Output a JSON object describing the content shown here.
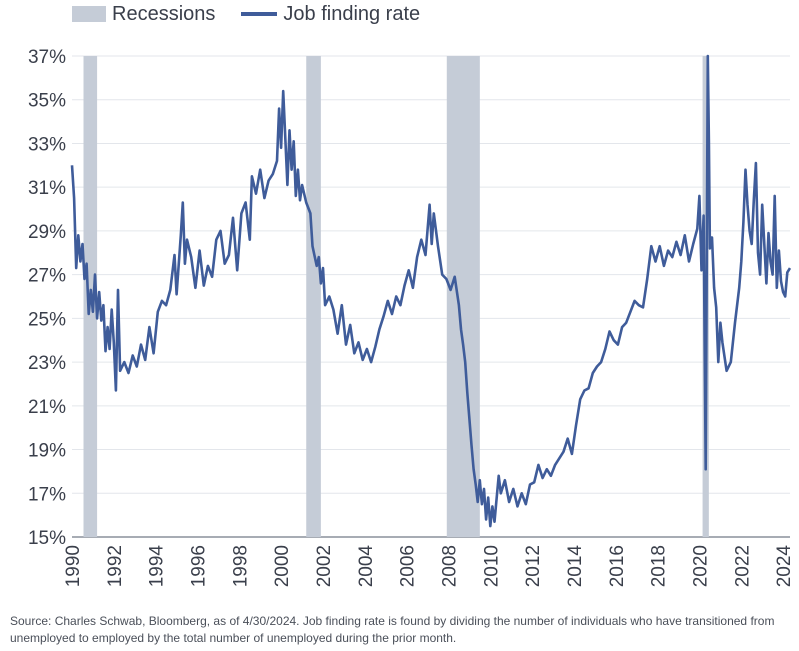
{
  "chart_data": {
    "type": "line",
    "title": "",
    "xlabel": "",
    "ylabel": "",
    "legend": [
      "Recessions",
      "Job finding rate"
    ],
    "legend_position": "top-left",
    "grid": "horizontal",
    "xlim": [
      1990,
      2024.33
    ],
    "ylim": [
      15,
      37
    ],
    "y_ticks": [
      "15%",
      "17%",
      "19%",
      "21%",
      "23%",
      "25%",
      "27%",
      "29%",
      "31%",
      "33%",
      "35%",
      "37%"
    ],
    "x_ticks": [
      "1990",
      "1992",
      "1994",
      "1996",
      "1998",
      "2000",
      "2002",
      "2004",
      "2006",
      "2008",
      "2010",
      "2012",
      "2014",
      "2016",
      "2018",
      "2020",
      "2022",
      "2024"
    ],
    "recessions": [
      [
        1990.55,
        1991.2
      ],
      [
        2001.2,
        2001.9
      ],
      [
        2007.92,
        2009.5
      ],
      [
        2020.15,
        2020.45
      ]
    ],
    "series": [
      {
        "name": "Job finding rate",
        "color": "#3f5c9a",
        "points": [
          [
            1990.0,
            32.0
          ],
          [
            1990.1,
            30.5
          ],
          [
            1990.2,
            27.3
          ],
          [
            1990.3,
            28.8
          ],
          [
            1990.4,
            27.6
          ],
          [
            1990.5,
            28.4
          ],
          [
            1990.6,
            26.8
          ],
          [
            1990.7,
            27.5
          ],
          [
            1990.8,
            25.2
          ],
          [
            1990.9,
            26.3
          ],
          [
            1991.0,
            25.3
          ],
          [
            1991.1,
            27.0
          ],
          [
            1991.2,
            25.0
          ],
          [
            1991.3,
            26.2
          ],
          [
            1991.4,
            24.9
          ],
          [
            1991.5,
            25.6
          ],
          [
            1991.6,
            23.5
          ],
          [
            1991.7,
            24.6
          ],
          [
            1991.8,
            23.6
          ],
          [
            1991.9,
            25.4
          ],
          [
            1992.0,
            23.9
          ],
          [
            1992.1,
            21.7
          ],
          [
            1992.2,
            26.3
          ],
          [
            1992.3,
            22.6
          ],
          [
            1992.5,
            23.0
          ],
          [
            1992.7,
            22.5
          ],
          [
            1992.9,
            23.3
          ],
          [
            1993.1,
            22.8
          ],
          [
            1993.3,
            23.8
          ],
          [
            1993.5,
            23.1
          ],
          [
            1993.7,
            24.6
          ],
          [
            1993.9,
            23.4
          ],
          [
            1994.1,
            25.3
          ],
          [
            1994.3,
            25.8
          ],
          [
            1994.5,
            25.6
          ],
          [
            1994.7,
            26.3
          ],
          [
            1994.9,
            27.9
          ],
          [
            1995.0,
            26.1
          ],
          [
            1995.2,
            28.8
          ],
          [
            1995.3,
            30.3
          ],
          [
            1995.4,
            27.5
          ],
          [
            1995.5,
            28.6
          ],
          [
            1995.7,
            27.8
          ],
          [
            1995.9,
            26.4
          ],
          [
            1996.1,
            28.1
          ],
          [
            1996.3,
            26.5
          ],
          [
            1996.5,
            27.4
          ],
          [
            1996.7,
            26.9
          ],
          [
            1996.9,
            28.6
          ],
          [
            1997.1,
            29.0
          ],
          [
            1997.3,
            27.5
          ],
          [
            1997.5,
            27.9
          ],
          [
            1997.7,
            29.6
          ],
          [
            1997.9,
            27.2
          ],
          [
            1998.1,
            29.8
          ],
          [
            1998.3,
            30.3
          ],
          [
            1998.5,
            28.6
          ],
          [
            1998.6,
            31.5
          ],
          [
            1998.8,
            30.7
          ],
          [
            1999.0,
            31.8
          ],
          [
            1999.2,
            30.5
          ],
          [
            1999.4,
            31.3
          ],
          [
            1999.6,
            31.6
          ],
          [
            1999.8,
            32.2
          ],
          [
            1999.9,
            34.6
          ],
          [
            2000.0,
            32.8
          ],
          [
            2000.1,
            35.4
          ],
          [
            2000.3,
            31.1
          ],
          [
            2000.4,
            33.6
          ],
          [
            2000.5,
            31.8
          ],
          [
            2000.6,
            33.1
          ],
          [
            2000.7,
            30.6
          ],
          [
            2000.8,
            31.8
          ],
          [
            2000.9,
            30.4
          ],
          [
            2001.0,
            31.1
          ],
          [
            2001.2,
            30.3
          ],
          [
            2001.4,
            29.8
          ],
          [
            2001.5,
            28.3
          ],
          [
            2001.7,
            27.4
          ],
          [
            2001.8,
            27.8
          ],
          [
            2001.9,
            26.6
          ],
          [
            2002.0,
            27.3
          ],
          [
            2002.1,
            25.6
          ],
          [
            2002.3,
            26.0
          ],
          [
            2002.5,
            25.4
          ],
          [
            2002.7,
            24.3
          ],
          [
            2002.9,
            25.6
          ],
          [
            2003.1,
            23.8
          ],
          [
            2003.3,
            24.7
          ],
          [
            2003.5,
            23.4
          ],
          [
            2003.7,
            23.9
          ],
          [
            2003.9,
            23.1
          ],
          [
            2004.1,
            23.6
          ],
          [
            2004.3,
            23.0
          ],
          [
            2004.5,
            23.7
          ],
          [
            2004.7,
            24.5
          ],
          [
            2004.9,
            25.1
          ],
          [
            2005.1,
            25.8
          ],
          [
            2005.3,
            25.2
          ],
          [
            2005.5,
            26.0
          ],
          [
            2005.7,
            25.6
          ],
          [
            2005.9,
            26.5
          ],
          [
            2006.1,
            27.2
          ],
          [
            2006.3,
            26.4
          ],
          [
            2006.5,
            27.8
          ],
          [
            2006.7,
            28.6
          ],
          [
            2006.9,
            27.9
          ],
          [
            2007.1,
            30.2
          ],
          [
            2007.2,
            28.4
          ],
          [
            2007.3,
            29.8
          ],
          [
            2007.5,
            28.3
          ],
          [
            2007.7,
            27.0
          ],
          [
            2007.9,
            26.8
          ],
          [
            2008.1,
            26.3
          ],
          [
            2008.3,
            26.9
          ],
          [
            2008.5,
            25.6
          ],
          [
            2008.6,
            24.5
          ],
          [
            2008.7,
            23.8
          ],
          [
            2008.8,
            23.0
          ],
          [
            2008.9,
            21.6
          ],
          [
            2009.0,
            20.4
          ],
          [
            2009.1,
            19.2
          ],
          [
            2009.2,
            18.1
          ],
          [
            2009.3,
            17.4
          ],
          [
            2009.4,
            16.6
          ],
          [
            2009.5,
            17.6
          ],
          [
            2009.6,
            16.5
          ],
          [
            2009.7,
            17.2
          ],
          [
            2009.8,
            15.8
          ],
          [
            2009.9,
            16.8
          ],
          [
            2010.0,
            15.5
          ],
          [
            2010.1,
            16.4
          ],
          [
            2010.2,
            15.7
          ],
          [
            2010.4,
            17.8
          ],
          [
            2010.5,
            17.0
          ],
          [
            2010.7,
            17.6
          ],
          [
            2010.9,
            16.6
          ],
          [
            2011.1,
            17.2
          ],
          [
            2011.3,
            16.4
          ],
          [
            2011.5,
            17.0
          ],
          [
            2011.7,
            16.5
          ],
          [
            2011.9,
            17.4
          ],
          [
            2012.1,
            17.5
          ],
          [
            2012.3,
            18.3
          ],
          [
            2012.5,
            17.7
          ],
          [
            2012.7,
            18.1
          ],
          [
            2012.9,
            17.8
          ],
          [
            2013.1,
            18.3
          ],
          [
            2013.3,
            18.6
          ],
          [
            2013.5,
            18.9
          ],
          [
            2013.7,
            19.5
          ],
          [
            2013.9,
            18.8
          ],
          [
            2014.1,
            20.1
          ],
          [
            2014.3,
            21.3
          ],
          [
            2014.5,
            21.7
          ],
          [
            2014.7,
            21.8
          ],
          [
            2014.9,
            22.5
          ],
          [
            2015.1,
            22.8
          ],
          [
            2015.3,
            23.0
          ],
          [
            2015.5,
            23.6
          ],
          [
            2015.7,
            24.4
          ],
          [
            2015.9,
            24.0
          ],
          [
            2016.1,
            23.8
          ],
          [
            2016.3,
            24.6
          ],
          [
            2016.5,
            24.8
          ],
          [
            2016.7,
            25.3
          ],
          [
            2016.9,
            25.8
          ],
          [
            2017.1,
            25.6
          ],
          [
            2017.3,
            25.5
          ],
          [
            2017.5,
            26.8
          ],
          [
            2017.7,
            28.3
          ],
          [
            2017.9,
            27.6
          ],
          [
            2018.1,
            28.3
          ],
          [
            2018.3,
            27.4
          ],
          [
            2018.5,
            28.1
          ],
          [
            2018.7,
            27.8
          ],
          [
            2018.9,
            28.5
          ],
          [
            2019.1,
            27.9
          ],
          [
            2019.3,
            28.8
          ],
          [
            2019.5,
            27.6
          ],
          [
            2019.7,
            28.4
          ],
          [
            2019.9,
            29.1
          ],
          [
            2020.0,
            30.6
          ],
          [
            2020.1,
            27.2
          ],
          [
            2020.2,
            29.7
          ],
          [
            2020.3,
            18.1
          ],
          [
            2020.4,
            37.0
          ],
          [
            2020.45,
            33.1
          ],
          [
            2020.5,
            28.2
          ],
          [
            2020.6,
            28.7
          ],
          [
            2020.7,
            26.4
          ],
          [
            2020.8,
            25.5
          ],
          [
            2020.9,
            23.0
          ],
          [
            2021.0,
            24.8
          ],
          [
            2021.1,
            23.9
          ],
          [
            2021.3,
            22.6
          ],
          [
            2021.5,
            23.0
          ],
          [
            2021.7,
            24.8
          ],
          [
            2021.9,
            26.4
          ],
          [
            2022.0,
            27.6
          ],
          [
            2022.1,
            29.4
          ],
          [
            2022.2,
            31.8
          ],
          [
            2022.3,
            30.2
          ],
          [
            2022.4,
            29.0
          ],
          [
            2022.5,
            28.4
          ],
          [
            2022.6,
            30.4
          ],
          [
            2022.7,
            32.1
          ],
          [
            2022.8,
            28.0
          ],
          [
            2022.9,
            27.0
          ],
          [
            2023.0,
            30.2
          ],
          [
            2023.1,
            28.4
          ],
          [
            2023.2,
            26.6
          ],
          [
            2023.3,
            28.9
          ],
          [
            2023.4,
            27.6
          ],
          [
            2023.5,
            27.0
          ],
          [
            2023.6,
            30.6
          ],
          [
            2023.7,
            26.4
          ],
          [
            2023.8,
            28.1
          ],
          [
            2023.9,
            26.7
          ],
          [
            2024.0,
            26.2
          ],
          [
            2024.1,
            26.0
          ],
          [
            2024.2,
            27.1
          ],
          [
            2024.33,
            27.3
          ]
        ]
      }
    ]
  },
  "source_note": "Source: Charles Schwab, Bloomberg, as of 4/30/2024. Job finding rate is found by dividing the number of individuals who have transitioned from unemployed to employed by the total number of unemployed during the prior month."
}
